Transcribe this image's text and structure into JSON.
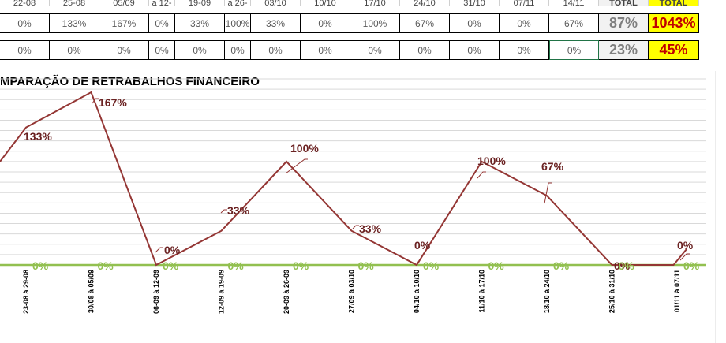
{
  "sheet": {
    "header_row": [
      "22-08",
      "25-08",
      "05/09",
      "a 12-",
      "19-09",
      "a 26-",
      "03/10",
      "10/10",
      "17/10",
      "24/10",
      "31/10",
      "07/11",
      "14/11",
      "TOTAL",
      "TOTAL"
    ],
    "row1": [
      "0%",
      "133%",
      "167%",
      "0%",
      "33%",
      "100%",
      "33%",
      "0%",
      "100%",
      "67%",
      "0%",
      "0%",
      "67%",
      "87%",
      "1043%"
    ],
    "row2": [
      "0%",
      "0%",
      "0%",
      "0%",
      "0%",
      "0%",
      "0%",
      "0%",
      "0%",
      "0%",
      "0%",
      "0%",
      "0%",
      "23%",
      "45%"
    ]
  },
  "chart_data": {
    "type": "line",
    "title": "MPARAÇÃO DE RETRABALHOS  FINANCEIRO",
    "categories": [
      "23-08 à 29-08",
      "30/08 à 05/09",
      "06-09 à 12-09",
      "12-09 à 19-09",
      "20-09 à 26-09",
      "27/09 à 03/10",
      "04/10 à 10/10",
      "11/10 à 17/10",
      "18/10 à 24/10",
      "25/10 à 31/10",
      "01/11 à 07/11"
    ],
    "series": [
      {
        "color": "#943634",
        "values": [
          133,
          167,
          0,
          33,
          100,
          33,
          0,
          100,
          67,
          0,
          0
        ],
        "labels": [
          "133%",
          "167%",
          "0%",
          "33%",
          "100%",
          "33%",
          "0%",
          "100%",
          "67%",
          "0%",
          "0%"
        ]
      },
      {
        "color": "#92c050",
        "values": [
          0,
          0,
          0,
          0,
          0,
          0,
          0,
          0,
          0,
          0,
          0
        ],
        "labels": [
          "0%",
          "0%",
          "0%",
          "0%",
          "0%",
          "0%",
          "0%",
          "0%",
          "0%",
          "0%",
          "0%"
        ]
      }
    ],
    "prev_value": 100,
    "ylim": [
      0,
      180
    ],
    "grid": true
  }
}
